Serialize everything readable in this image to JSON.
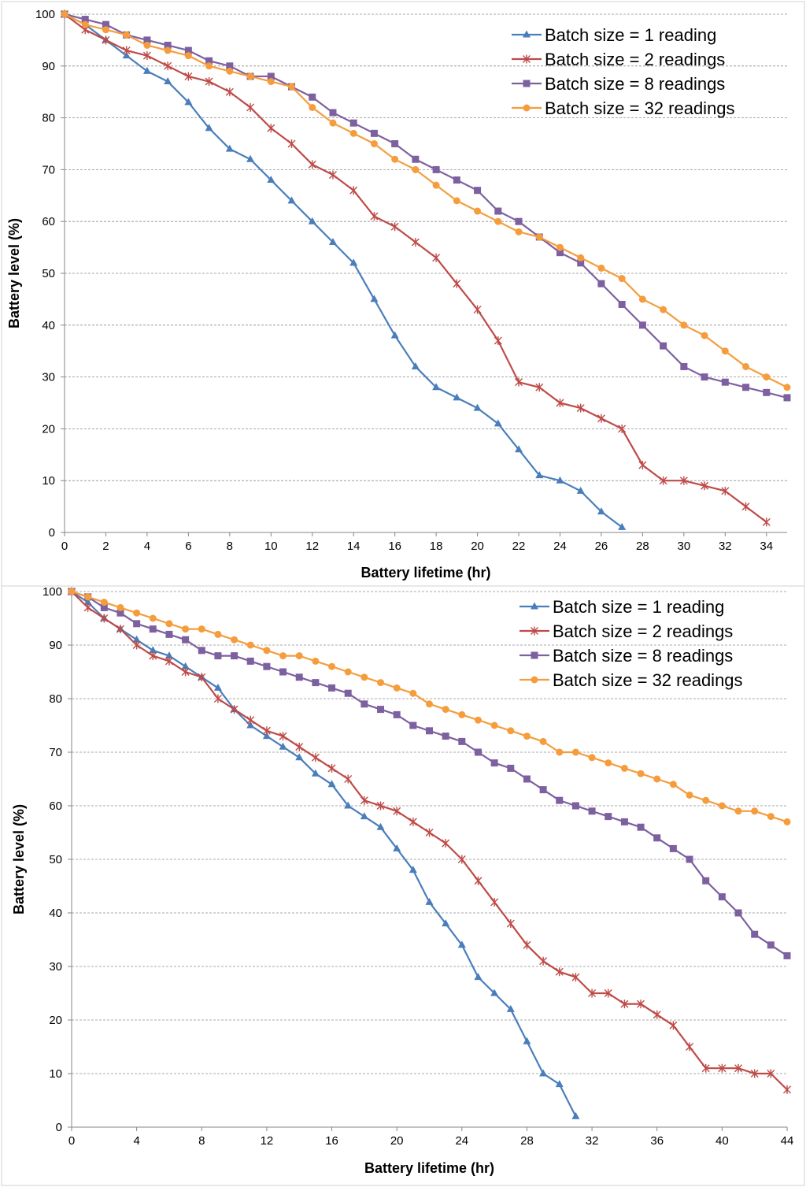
{
  "chart_data": [
    {
      "type": "line",
      "xlabel": "Battery lifetime (hr)",
      "ylabel": "Battery level (%)",
      "xlim": [
        0,
        35
      ],
      "ylim": [
        0,
        100
      ],
      "xticks": [
        0,
        2,
        4,
        6,
        8,
        10,
        12,
        14,
        16,
        18,
        20,
        22,
        24,
        26,
        28,
        30,
        32,
        34
      ],
      "yticks": [
        0,
        10,
        20,
        30,
        40,
        50,
        60,
        70,
        80,
        90,
        100
      ],
      "grid": "horizontal dashed",
      "legend_position": "top-right",
      "series": [
        {
          "name": "Batch size = 1 reading",
          "color": "#4a7ebb",
          "marker": "triangle",
          "values": [
            100,
            98,
            95,
            92,
            89,
            87,
            83,
            78,
            74,
            72,
            68,
            64,
            60,
            56,
            52,
            45,
            38,
            32,
            28,
            26,
            24,
            21,
            16,
            11,
            10,
            8,
            4,
            1
          ]
        },
        {
          "name": "Batch size = 2 readings",
          "color": "#be4b48",
          "marker": "star",
          "values": [
            100,
            97,
            95,
            93,
            92,
            90,
            88,
            87,
            85,
            82,
            78,
            75,
            71,
            69,
            66,
            61,
            59,
            56,
            53,
            48,
            43,
            37,
            29,
            28,
            25,
            24,
            22,
            20,
            13,
            10,
            10,
            9,
            8,
            5,
            2
          ]
        },
        {
          "name": "Batch size = 8 readings",
          "color": "#7d60a0",
          "marker": "square",
          "values": [
            100,
            99,
            98,
            96,
            95,
            94,
            93,
            91,
            90,
            88,
            88,
            86,
            84,
            81,
            79,
            77,
            75,
            72,
            70,
            68,
            66,
            62,
            60,
            57,
            54,
            52,
            48,
            44,
            40,
            36,
            32,
            30,
            29,
            28,
            27,
            26
          ]
        },
        {
          "name": "Batch size = 32 readings",
          "color": "#f59d3d",
          "marker": "circle",
          "values": [
            100,
            98,
            97,
            96,
            94,
            93,
            92,
            90,
            89,
            88,
            87,
            86,
            82,
            79,
            77,
            75,
            72,
            70,
            67,
            64,
            62,
            60,
            58,
            57,
            55,
            53,
            51,
            49,
            45,
            43,
            40,
            38,
            35,
            32,
            30,
            28
          ]
        }
      ]
    },
    {
      "type": "line",
      "xlabel": "Battery lifetime (hr)",
      "ylabel": "Battery level (%)",
      "xlim": [
        0,
        44
      ],
      "ylim": [
        0,
        100
      ],
      "xticks": [
        0,
        4,
        8,
        12,
        16,
        20,
        24,
        28,
        32,
        36,
        40,
        44
      ],
      "yticks": [
        0,
        10,
        20,
        30,
        40,
        50,
        60,
        70,
        80,
        90,
        100
      ],
      "grid": "horizontal dashed",
      "legend_position": "top-right",
      "series": [
        {
          "name": "Batch size = 1 reading",
          "color": "#4a7ebb",
          "marker": "triangle",
          "values": [
            100,
            98,
            95,
            93,
            91,
            89,
            88,
            86,
            84,
            82,
            78,
            75,
            73,
            71,
            69,
            66,
            64,
            60,
            58,
            56,
            52,
            48,
            42,
            38,
            34,
            28,
            25,
            22,
            16,
            10,
            8,
            2
          ]
        },
        {
          "name": "Batch size = 2 readings",
          "color": "#be4b48",
          "marker": "star",
          "values": [
            100,
            97,
            95,
            93,
            90,
            88,
            87,
            85,
            84,
            80,
            78,
            76,
            74,
            73,
            71,
            69,
            67,
            65,
            61,
            60,
            59,
            57,
            55,
            53,
            50,
            46,
            42,
            38,
            34,
            31,
            29,
            28,
            25,
            25,
            23,
            23,
            21,
            19,
            15,
            11,
            11,
            11,
            10,
            10,
            7
          ]
        },
        {
          "name": "Batch size = 8 readings",
          "color": "#7d60a0",
          "marker": "square",
          "values": [
            100,
            99,
            97,
            96,
            94,
            93,
            92,
            91,
            89,
            88,
            88,
            87,
            86,
            85,
            84,
            83,
            82,
            81,
            79,
            78,
            77,
            75,
            74,
            73,
            72,
            70,
            68,
            67,
            65,
            63,
            61,
            60,
            59,
            58,
            57,
            56,
            54,
            52,
            50,
            46,
            43,
            40,
            36,
            34,
            32
          ]
        },
        {
          "name": "Batch size = 32 readings",
          "color": "#f59d3d",
          "marker": "circle",
          "values": [
            100,
            99,
            98,
            97,
            96,
            95,
            94,
            93,
            93,
            92,
            91,
            90,
            89,
            88,
            88,
            87,
            86,
            85,
            84,
            83,
            82,
            81,
            79,
            78,
            77,
            76,
            75,
            74,
            73,
            72,
            70,
            70,
            69,
            68,
            67,
            66,
            65,
            64,
            62,
            61,
            60,
            59,
            59,
            58,
            57
          ]
        }
      ]
    }
  ]
}
